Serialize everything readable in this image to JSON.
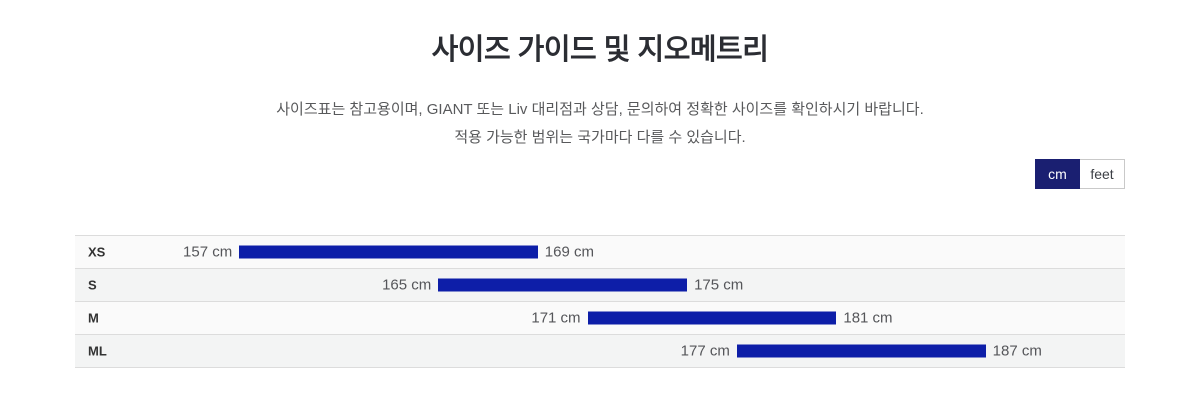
{
  "page": {
    "title": "사이즈 가이드 및 지오메트리",
    "description_line1": "사이즈표는 참고용이며, GIANT 또는 Liv 대리점과 상담, 문의하여 정확한 사이즈를 확인하시기 바랍니다.",
    "description_line2": "적용 가능한 범위는 국가마다 다를 수 있습니다."
  },
  "unit_toggle": {
    "selected": "cm",
    "options": [
      {
        "label": "cm",
        "selected": true
      },
      {
        "label": "feet",
        "selected": false
      }
    ]
  },
  "colors": {
    "bar_navy": "#0d1ea8",
    "toggle_navy": "#1a1f71",
    "row_bg_odd": "#fafafa",
    "row_bg_even": "#f3f4f4",
    "row_border": "#dcdcdc",
    "value_text": "#55565a"
  },
  "chart_data": {
    "type": "bar",
    "orientation": "horizontal-range",
    "unit": "cm",
    "title": "",
    "categories": [
      "XS",
      "S",
      "M",
      "ML"
    ],
    "ranges": [
      {
        "size": "XS",
        "min": 157,
        "max": 169,
        "min_label": "157 cm",
        "max_label": "169 cm"
      },
      {
        "size": "S",
        "min": 165,
        "max": 175,
        "min_label": "165 cm",
        "max_label": "175 cm"
      },
      {
        "size": "M",
        "min": 171,
        "max": 181,
        "min_label": "171 cm",
        "max_label": "181 cm"
      },
      {
        "size": "ML",
        "min": 177,
        "max": 187,
        "min_label": "177 cm",
        "max_label": "187 cm"
      }
    ],
    "axis": {
      "scale_min": 150.4,
      "scale_max": 192.6,
      "gridlines": false,
      "tick_labels": "inline"
    },
    "legend": "none"
  }
}
